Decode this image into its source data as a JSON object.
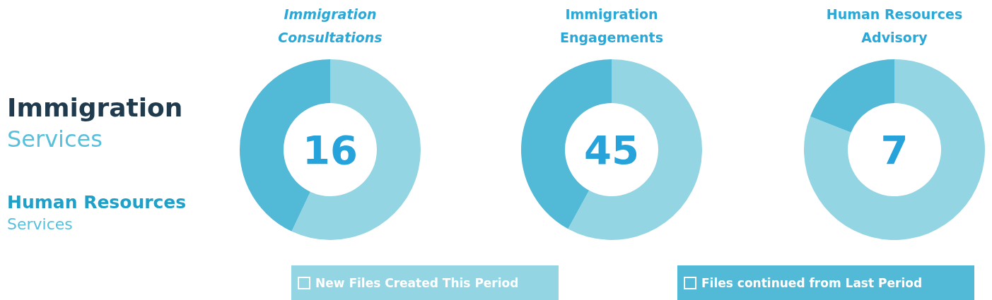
{
  "chart_data": [
    {
      "type": "other",
      "annotations": [
        "Immigration",
        "Services",
        "Human Resources",
        "Services"
      ]
    },
    {
      "type": "donut",
      "categories": [
        "New Files Created This Period",
        "Files continued from Last Period"
      ],
      "colors": [
        "#93d5e3",
        "#52b9d6"
      ],
      "legend": "bottom",
      "series": [
        {
          "name": "Immigration Consultations",
          "values": [
            57,
            43
          ]
        },
        {
          "name": "Immigration Engagements",
          "values": [
            58,
            42
          ]
        },
        {
          "name": "Human Resources Advisory",
          "values": [
            81,
            19
          ]
        }
      ],
      "annotations": [
        "16",
        "45",
        "7"
      ]
    }
  ]
}
